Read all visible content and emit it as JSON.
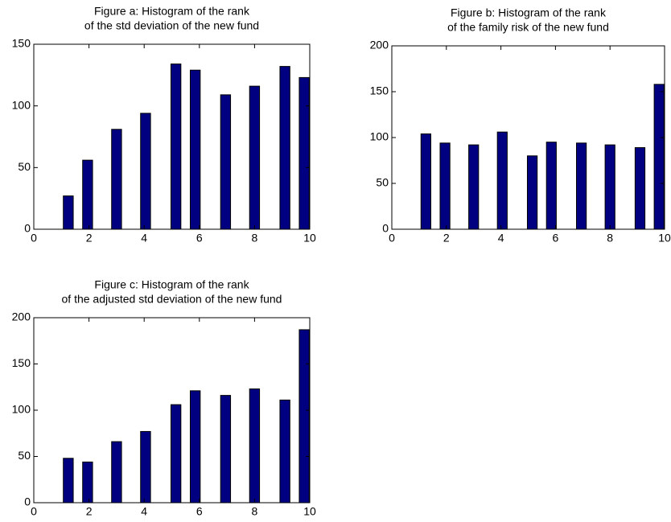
{
  "chart_data": [
    {
      "type": "bar",
      "title": [
        "Figure a: Histogram of the rank",
        "of the std deviation of the new fund"
      ],
      "x": [
        1.25,
        1.95,
        3.0,
        4.05,
        5.15,
        5.85,
        6.95,
        8.0,
        9.1,
        9.8
      ],
      "values": [
        27,
        56,
        81,
        94,
        134,
        129,
        109,
        116,
        132,
        123
      ],
      "xlim": [
        0,
        10
      ],
      "xticks": [
        0,
        2,
        4,
        6,
        8,
        10
      ],
      "ylim": [
        0,
        150
      ],
      "yticks": [
        0,
        50,
        100,
        150
      ],
      "color": "#000080"
    },
    {
      "type": "bar",
      "title": [
        "Figure b: Histogram of the rank",
        "of the family risk of the new fund"
      ],
      "x": [
        1.25,
        1.95,
        3.0,
        4.05,
        5.15,
        5.85,
        6.95,
        8.0,
        9.1,
        9.8
      ],
      "values": [
        104,
        94,
        92,
        106,
        80,
        95,
        94,
        92,
        89,
        158
      ],
      "xlim": [
        0,
        10
      ],
      "xticks": [
        0,
        2,
        4,
        6,
        8,
        10
      ],
      "ylim": [
        0,
        200
      ],
      "yticks": [
        0,
        50,
        100,
        150,
        200
      ],
      "color": "#000080"
    },
    {
      "type": "bar",
      "title": [
        "Figure c: Histogram of the rank",
        "of  the adjusted std deviation of the new fund"
      ],
      "x": [
        1.25,
        1.95,
        3.0,
        4.05,
        5.15,
        5.85,
        6.95,
        8.0,
        9.1,
        9.8
      ],
      "values": [
        48,
        44,
        66,
        77,
        106,
        121,
        116,
        123,
        111,
        187
      ],
      "xlim": [
        0,
        10
      ],
      "xticks": [
        0,
        2,
        4,
        6,
        8,
        10
      ],
      "ylim": [
        0,
        200
      ],
      "yticks": [
        0,
        50,
        100,
        150,
        200
      ],
      "color": "#000080"
    }
  ]
}
